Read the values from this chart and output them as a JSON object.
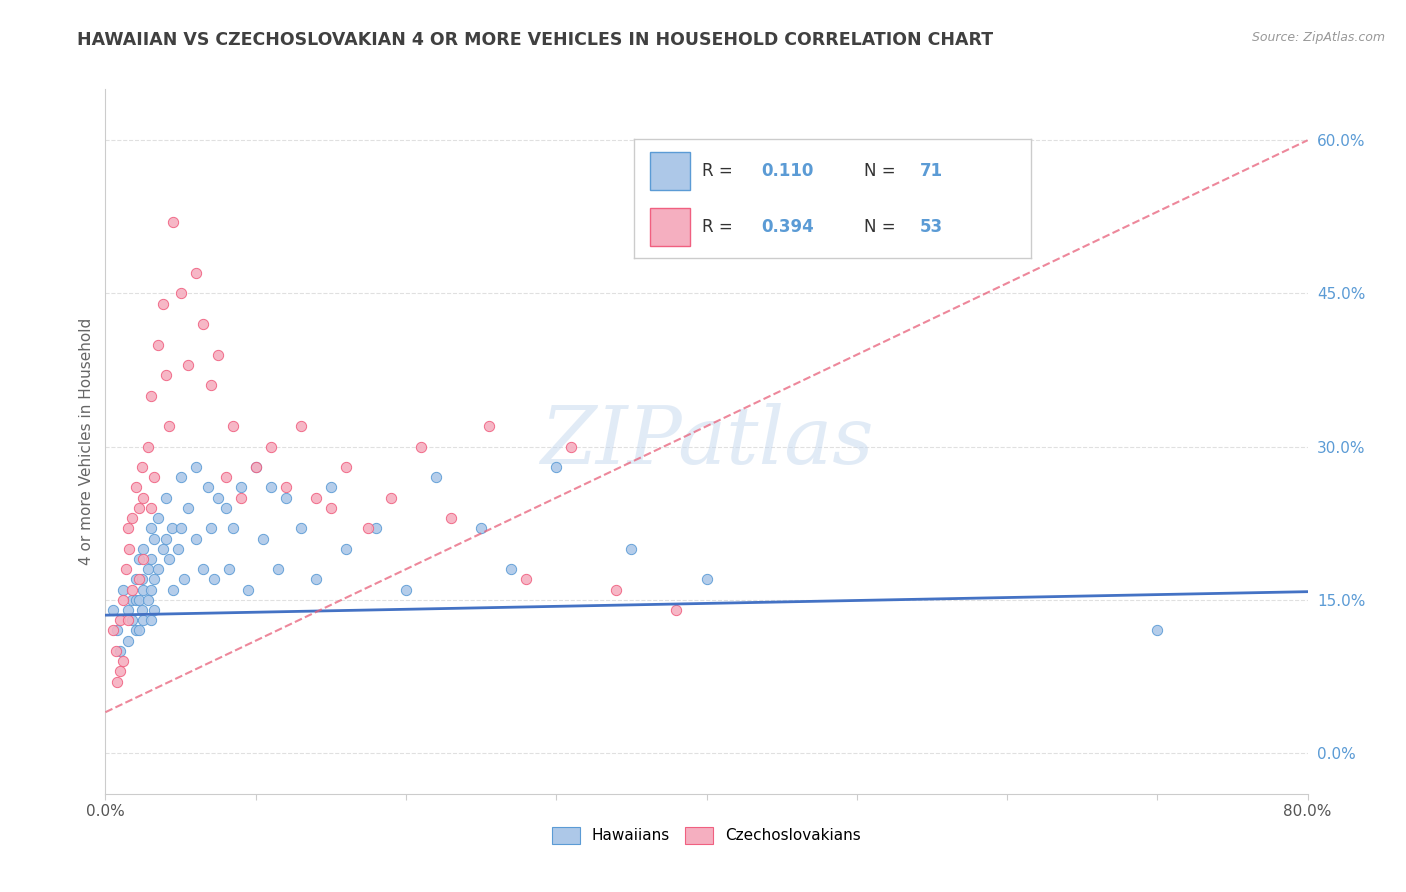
{
  "title": "HAWAIIAN VS CZECHOSLOVAKIAN 4 OR MORE VEHICLES IN HOUSEHOLD CORRELATION CHART",
  "source": "Source: ZipAtlas.com",
  "ylabel": "4 or more Vehicles in Household",
  "xlim": [
    0.0,
    0.8
  ],
  "ylim": [
    -0.04,
    0.65
  ],
  "legend_labels": [
    "Hawaiians",
    "Czechoslovakians"
  ],
  "legend_r_hawaiian": "0.110",
  "legend_n_hawaiian": "71",
  "legend_r_czech": "0.394",
  "legend_n_czech": "53",
  "hawaiian_color": "#adc8e8",
  "czech_color": "#f5afc0",
  "hawaiian_edge_color": "#5b9bd5",
  "czech_edge_color": "#f06080",
  "hawaiian_line_color": "#4472c4",
  "czech_line_color": "#e8607a",
  "watermark": "ZIPatlas",
  "hawaiian_scatter_x": [
    0.005,
    0.008,
    0.01,
    0.012,
    0.015,
    0.015,
    0.018,
    0.018,
    0.02,
    0.02,
    0.02,
    0.022,
    0.022,
    0.022,
    0.024,
    0.024,
    0.025,
    0.025,
    0.025,
    0.028,
    0.028,
    0.03,
    0.03,
    0.03,
    0.03,
    0.032,
    0.032,
    0.032,
    0.035,
    0.035,
    0.038,
    0.04,
    0.04,
    0.042,
    0.044,
    0.045,
    0.048,
    0.05,
    0.05,
    0.052,
    0.055,
    0.06,
    0.06,
    0.065,
    0.068,
    0.07,
    0.072,
    0.075,
    0.08,
    0.082,
    0.085,
    0.09,
    0.095,
    0.1,
    0.105,
    0.11,
    0.115,
    0.12,
    0.13,
    0.14,
    0.15,
    0.16,
    0.18,
    0.2,
    0.22,
    0.25,
    0.27,
    0.3,
    0.35,
    0.4,
    0.7
  ],
  "hawaiian_scatter_y": [
    0.14,
    0.12,
    0.1,
    0.16,
    0.14,
    0.11,
    0.15,
    0.13,
    0.17,
    0.15,
    0.12,
    0.19,
    0.15,
    0.12,
    0.17,
    0.14,
    0.2,
    0.16,
    0.13,
    0.18,
    0.15,
    0.22,
    0.19,
    0.16,
    0.13,
    0.21,
    0.17,
    0.14,
    0.23,
    0.18,
    0.2,
    0.25,
    0.21,
    0.19,
    0.22,
    0.16,
    0.2,
    0.27,
    0.22,
    0.17,
    0.24,
    0.28,
    0.21,
    0.18,
    0.26,
    0.22,
    0.17,
    0.25,
    0.24,
    0.18,
    0.22,
    0.26,
    0.16,
    0.28,
    0.21,
    0.26,
    0.18,
    0.25,
    0.22,
    0.17,
    0.26,
    0.2,
    0.22,
    0.16,
    0.27,
    0.22,
    0.18,
    0.28,
    0.2,
    0.17,
    0.12
  ],
  "czech_scatter_x": [
    0.005,
    0.007,
    0.008,
    0.01,
    0.01,
    0.012,
    0.012,
    0.014,
    0.015,
    0.015,
    0.016,
    0.018,
    0.018,
    0.02,
    0.022,
    0.022,
    0.024,
    0.025,
    0.025,
    0.028,
    0.03,
    0.03,
    0.032,
    0.035,
    0.038,
    0.04,
    0.042,
    0.045,
    0.05,
    0.055,
    0.06,
    0.065,
    0.07,
    0.075,
    0.08,
    0.085,
    0.09,
    0.1,
    0.11,
    0.12,
    0.13,
    0.14,
    0.15,
    0.16,
    0.175,
    0.19,
    0.21,
    0.23,
    0.255,
    0.28,
    0.31,
    0.34,
    0.38
  ],
  "czech_scatter_y": [
    0.12,
    0.1,
    0.07,
    0.13,
    0.08,
    0.15,
    0.09,
    0.18,
    0.22,
    0.13,
    0.2,
    0.23,
    0.16,
    0.26,
    0.24,
    0.17,
    0.28,
    0.25,
    0.19,
    0.3,
    0.35,
    0.24,
    0.27,
    0.4,
    0.44,
    0.37,
    0.32,
    0.52,
    0.45,
    0.38,
    0.47,
    0.42,
    0.36,
    0.39,
    0.27,
    0.32,
    0.25,
    0.28,
    0.3,
    0.26,
    0.32,
    0.25,
    0.24,
    0.28,
    0.22,
    0.25,
    0.3,
    0.23,
    0.32,
    0.17,
    0.3,
    0.16,
    0.14
  ],
  "hawaiian_line_x0": 0.0,
  "hawaiian_line_x1": 0.8,
  "hawaiian_line_y0": 0.135,
  "hawaiian_line_y1": 0.158,
  "czech_line_x0": 0.0,
  "czech_line_x1": 0.8,
  "czech_line_y0": 0.04,
  "czech_line_y1": 0.6,
  "background_color": "#ffffff",
  "grid_color": "#e0e0e0",
  "title_color": "#404040",
  "right_label_color": "#5b9bd5",
  "legend_text_color": "#333333",
  "ytick_values": [
    0.0,
    0.15,
    0.3,
    0.45,
    0.6
  ],
  "ytick_labels": [
    "0.0%",
    "15.0%",
    "30.0%",
    "45.0%",
    "60.0%"
  ]
}
